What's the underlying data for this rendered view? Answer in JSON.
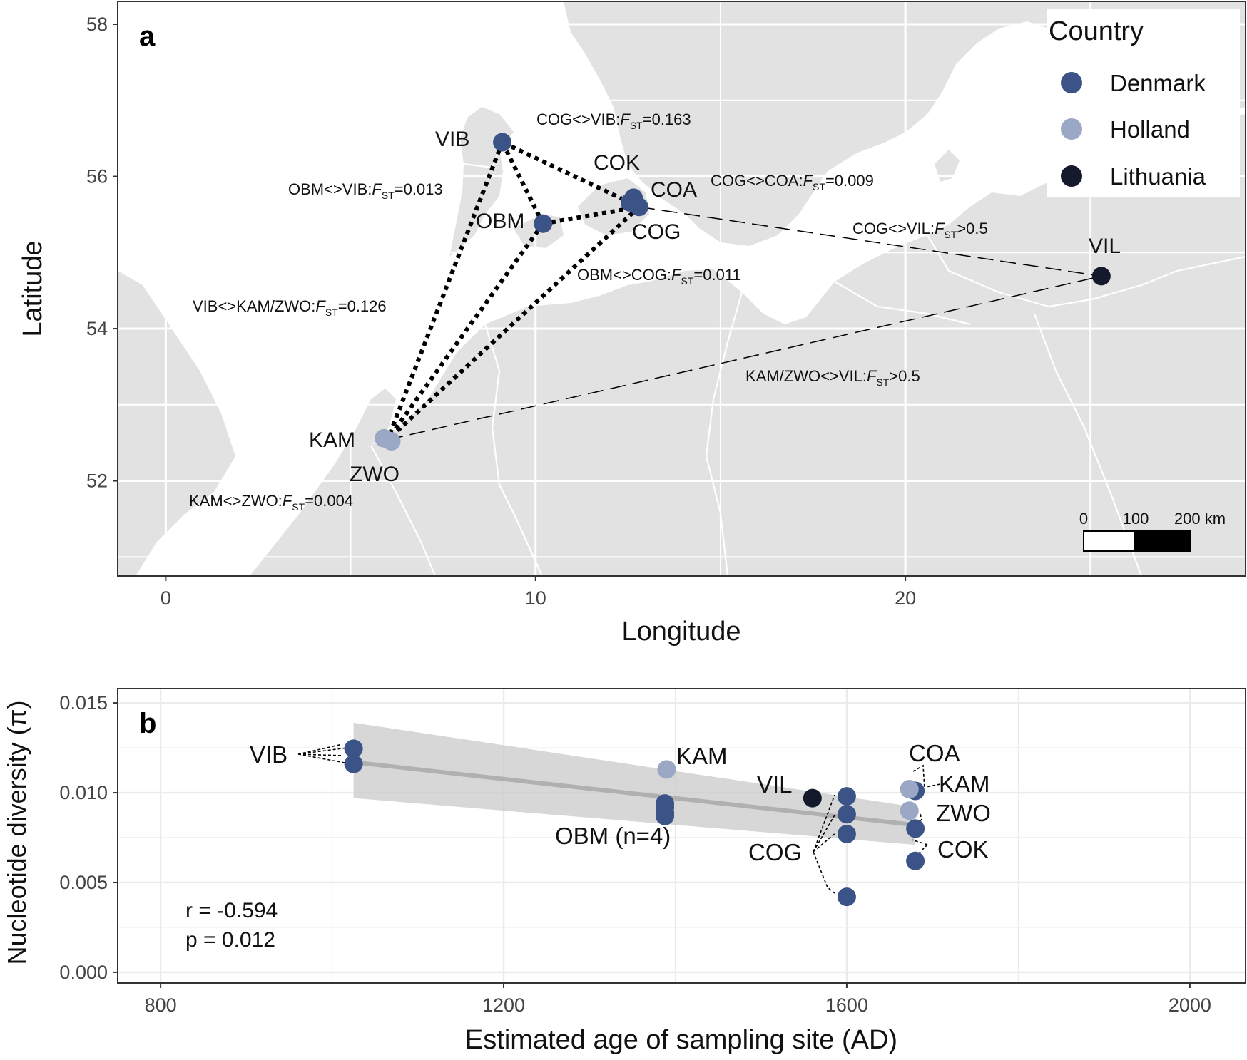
{
  "colors": {
    "Denmark": "#3b5387",
    "Holland": "#9aa8c6",
    "Lithuania": "#141a2b",
    "land": "#e2e2e2",
    "border": "#ffffff",
    "panel_frame": "#333333"
  },
  "panel_a": {
    "letter": "a",
    "xlabel": "Longitude",
    "ylabel": "Latitude",
    "xticks": [
      "0",
      "10",
      "20"
    ],
    "yticks": [
      "52",
      "54",
      "56",
      "58"
    ],
    "legend": {
      "title": "Country",
      "items": [
        "Denmark",
        "Holland",
        "Lithuania"
      ]
    },
    "scalebar": {
      "labels": [
        "0",
        "100",
        "200 km"
      ]
    },
    "annotations": [
      {
        "prefix": "COG<>VIB:",
        "suffix": "=0.163"
      },
      {
        "prefix": "OBM<>VIB:",
        "suffix": "=0.013"
      },
      {
        "prefix": "COG<>COA:",
        "suffix": "=0.009"
      },
      {
        "prefix": "COG<>VIL:",
        "suffix": ">0.5"
      },
      {
        "prefix": "OBM<>COG:",
        "suffix": "=0.011"
      },
      {
        "prefix": "VIB<>KAM/ZWO:",
        "suffix": "=0.126"
      },
      {
        "prefix": "KAM/ZWO<>VIL:",
        "suffix": ">0.5"
      },
      {
        "prefix": "KAM<>ZWO:",
        "suffix": "=0.004"
      }
    ],
    "fst_symbol": "F",
    "fst_subscript": "ST"
  },
  "panel_b": {
    "letter": "b",
    "xlabel": "Estimated age of sampling site (AD)",
    "ylabel": "Nucleotide diversity (π)",
    "xticks": [
      "800",
      "1200",
      "1600",
      "2000"
    ],
    "yticks": [
      "0.000",
      "0.005",
      "0.010",
      "0.015"
    ],
    "stats": [
      "r = -0.594",
      "p = 0.012"
    ],
    "point_labels": [
      "VIB",
      "KAM",
      "OBM (n=4)",
      "VIL",
      "COG",
      "COA",
      "KAM",
      "ZWO",
      "COK"
    ]
  },
  "chart_data": [
    {
      "type": "scatter",
      "panel": "a",
      "x_axis": "Longitude",
      "y_axis": "Latitude",
      "xlim": [
        -1.3,
        29.2
      ],
      "ylim": [
        50.75,
        58.3
      ],
      "grid": true,
      "legend_position": "top-right",
      "points": [
        {
          "site": "VIB",
          "country": "Denmark",
          "x": 9.1,
          "y": 56.45
        },
        {
          "site": "OBM",
          "country": "Denmark",
          "x": 10.2,
          "y": 55.38
        },
        {
          "site": "COK",
          "country": "Denmark",
          "x": 12.65,
          "y": 55.72
        },
        {
          "site": "COA",
          "country": "Denmark",
          "x": 12.55,
          "y": 55.66
        },
        {
          "site": "COG",
          "country": "Denmark",
          "x": 12.8,
          "y": 55.6
        },
        {
          "site": "VIL",
          "country": "Lithuania",
          "x": 25.3,
          "y": 54.69
        },
        {
          "site": "KAM",
          "country": "Holland",
          "x": 5.9,
          "y": 52.56
        },
        {
          "site": "ZWO",
          "country": "Holland",
          "x": 6.1,
          "y": 52.52
        }
      ],
      "links": [
        {
          "from": "COG",
          "to": "VIB",
          "fst": "0.163",
          "style": "dotted"
        },
        {
          "from": "OBM",
          "to": "VIB",
          "fst": "0.013",
          "style": "dotted"
        },
        {
          "from": "OBM",
          "to": "COG",
          "fst": "0.011",
          "style": "dotted"
        },
        {
          "from": "VIB",
          "to": "KAM/ZWO",
          "fst": "0.126",
          "style": "dotted"
        },
        {
          "from": "OBM",
          "to": "KAM/ZWO",
          "style": "dotted"
        },
        {
          "from": "COG",
          "to": "KAM/ZWO",
          "style": "dotted"
        },
        {
          "from": "COG",
          "to": "VIL",
          "fst": ">0.5",
          "style": "dashed"
        },
        {
          "from": "KAM/ZWO",
          "to": "VIL",
          "fst": ">0.5",
          "style": "dashed"
        }
      ]
    },
    {
      "type": "scatter",
      "panel": "b",
      "xlabel": "Estimated age of sampling site (AD)",
      "ylabel": "Nucleotide diversity (π)",
      "xlim": [
        750,
        2065
      ],
      "ylim": [
        -0.0006,
        0.0158
      ],
      "grid": true,
      "points": [
        {
          "site": "VIB",
          "country": "Denmark",
          "x": 1025,
          "y": 0.01245
        },
        {
          "site": "VIB",
          "country": "Denmark",
          "x": 1025,
          "y": 0.0116
        },
        {
          "site": "KAM",
          "country": "Holland",
          "x": 1390,
          "y": 0.0113
        },
        {
          "site": "OBM",
          "country": "Denmark",
          "x": 1388,
          "y": 0.0094
        },
        {
          "site": "OBM",
          "country": "Denmark",
          "x": 1388,
          "y": 0.0092
        },
        {
          "site": "OBM",
          "country": "Denmark",
          "x": 1388,
          "y": 0.0089
        },
        {
          "site": "OBM",
          "country": "Denmark",
          "x": 1388,
          "y": 0.0087
        },
        {
          "site": "VIL",
          "country": "Lithuania",
          "x": 1560,
          "y": 0.0097
        },
        {
          "site": "COG",
          "country": "Denmark",
          "x": 1600,
          "y": 0.0098
        },
        {
          "site": "COG",
          "country": "Denmark",
          "x": 1600,
          "y": 0.0088
        },
        {
          "site": "COG",
          "country": "Denmark",
          "x": 1600,
          "y": 0.0077
        },
        {
          "site": "COG",
          "country": "Denmark",
          "x": 1600,
          "y": 0.0042
        },
        {
          "site": "COA",
          "country": "Denmark",
          "x": 1680,
          "y": 0.0101
        },
        {
          "site": "KAM",
          "country": "Holland",
          "x": 1673,
          "y": 0.0102
        },
        {
          "site": "ZWO",
          "country": "Holland",
          "x": 1673,
          "y": 0.009
        },
        {
          "site": "COK",
          "country": "Denmark",
          "x": 1680,
          "y": 0.008
        },
        {
          "site": "COK",
          "country": "Denmark",
          "x": 1680,
          "y": 0.0062
        }
      ],
      "regression": {
        "x": [
          1025,
          1680
        ],
        "y": [
          0.0117,
          0.0082
        ]
      },
      "confidence_band": {
        "x": [
          1025,
          1680
        ],
        "lower": [
          0.0097,
          0.0071
        ],
        "upper": [
          0.0139,
          0.0092
        ]
      }
    }
  ]
}
